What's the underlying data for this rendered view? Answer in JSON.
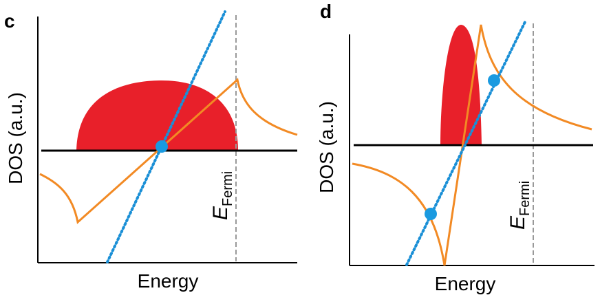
{
  "panels": [
    {
      "letter": "c",
      "xlabel": "Energy",
      "ylabel": "DOS (a.u.)",
      "fermi_main": "E",
      "fermi_sub": "Fermi"
    },
    {
      "letter": "d",
      "xlabel": "Energy",
      "ylabel": "DOS (a.u.)",
      "fermi_main": "E",
      "fermi_sub": "Fermi"
    }
  ],
  "colors": {
    "filled_band": "#e8202a",
    "dos_curve": "#f28a24",
    "dispersion_line": "#1a8fd6",
    "crossing_point": "#1a9ae0",
    "fermi_line": "#999999",
    "axes": "#000000"
  }
}
